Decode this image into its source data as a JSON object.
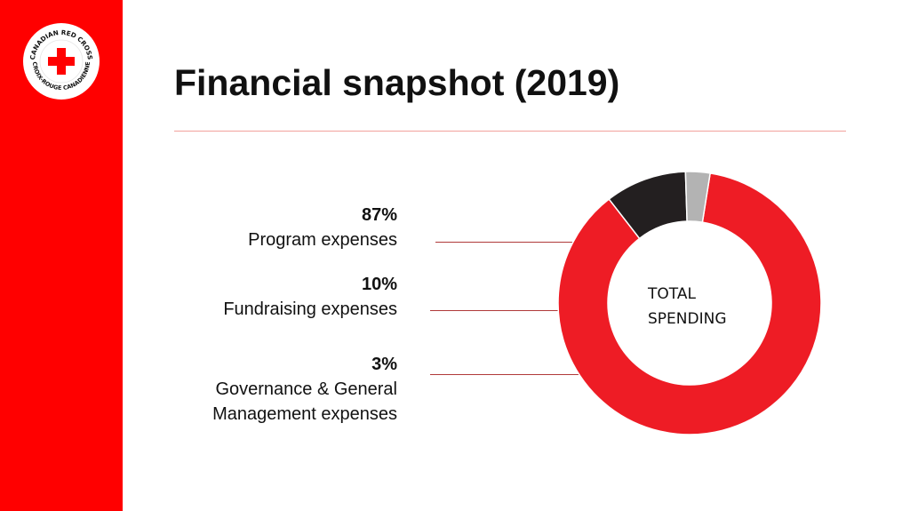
{
  "logo": {
    "text_top": "CANADIAN RED CROSS",
    "text_bottom": "CROIX-ROUGE CANADIENNE"
  },
  "title": "Financial snapshot (2019)",
  "chart_data": {
    "type": "pie",
    "center_label": "TOTAL\nSPENDING",
    "slices": [
      {
        "label": "Program expenses",
        "value": 87,
        "display": "87%",
        "color": "#ee1c25"
      },
      {
        "label": "Fundraising expenses",
        "value": 10,
        "display": "10%",
        "color": "#231f20"
      },
      {
        "label": "Governance & General\nManagement expenses",
        "value": 3,
        "display": "3%",
        "color": "#b3b3b3"
      }
    ]
  },
  "colors": {
    "sidebar": "#ff0000",
    "accent": "#ee1c25",
    "rule": "#f2a29c"
  }
}
